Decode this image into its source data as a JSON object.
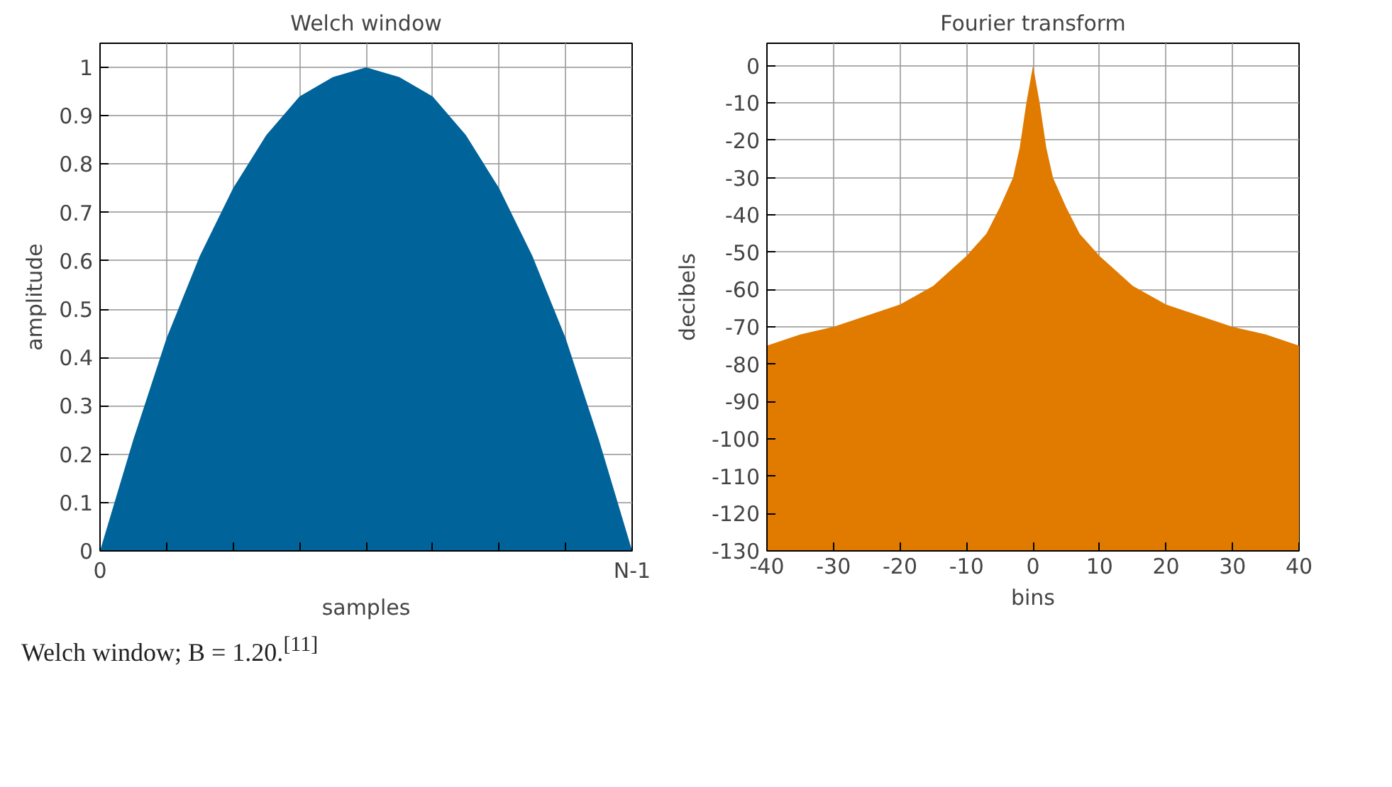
{
  "chart_data": [
    {
      "type": "area",
      "title": "Welch window",
      "xlabel": "samples",
      "ylabel": "amplitude",
      "categories": [
        "0",
        null,
        null,
        null,
        null,
        null,
        null,
        null,
        null,
        null,
        null,
        null,
        null,
        null,
        null,
        null,
        "N-1"
      ],
      "series": [
        {
          "color": "#00639a",
          "values": [
            0,
            0.23,
            0.44,
            0.61,
            0.75,
            0.86,
            0.94,
            0.98,
            1,
            0.98,
            0.94,
            0.86,
            0.75,
            0.61,
            0.44,
            0.23,
            0
          ]
        }
      ],
      "ylim": [
        0,
        1.05
      ],
      "yticks": [
        0,
        0.1,
        0.2,
        0.3,
        0.4,
        0.5,
        0.6,
        0.7,
        0.8,
        0.9,
        1
      ],
      "grid": true,
      "annotations": [
        "Welch window; B = 1.20.$^{[11]}$"
      ]
    },
    {
      "type": "area",
      "title": "Fourier transform",
      "xlabel": "bins",
      "ylabel": "decibels",
      "x": [
        -40,
        -40,
        -35,
        -30,
        -25,
        -20,
        -15,
        -10,
        -7,
        -5,
        -3,
        -2,
        -1,
        0,
        1,
        2,
        3,
        5,
        7,
        10,
        15,
        20,
        25,
        30,
        35,
        40,
        40
      ],
      "series": [
        {
          "color": "#e07b00",
          "values": [
            -130,
            -75,
            -72,
            -70,
            -67,
            -64,
            -59,
            -51,
            -45,
            -38,
            -30,
            -22,
            -10,
            0,
            -10,
            -22,
            -30,
            -38,
            -45,
            -51,
            -59,
            -64,
            -67,
            -70,
            -72,
            -75,
            -130
          ]
        }
      ],
      "xlim": [
        -40,
        40
      ],
      "ylim": [
        -130,
        6
      ],
      "xticks": [
        -40,
        -30,
        -20,
        -10,
        0,
        10,
        20,
        30,
        40
      ],
      "yticks": [
        0,
        -10,
        -20,
        -30,
        -40,
        -50,
        -60,
        -70,
        -80,
        -90,
        -100,
        -110,
        -120,
        -130
      ],
      "grid": true
    }
  ]
}
